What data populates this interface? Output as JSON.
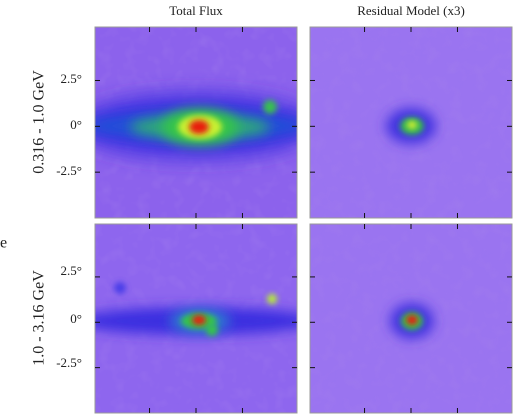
{
  "header": {
    "columns": [
      "Total Flux",
      "Residual Model (x3)"
    ]
  },
  "rows": [
    {
      "label": "0.316 - 1.0 GeV",
      "yticks": [
        "2.5°",
        "0°",
        "-2.5°"
      ]
    },
    {
      "label": "1.0 - 3.16 GeV",
      "yticks": [
        "2.5°",
        "0°",
        "-2.5°"
      ]
    }
  ],
  "fragment": "e"
}
